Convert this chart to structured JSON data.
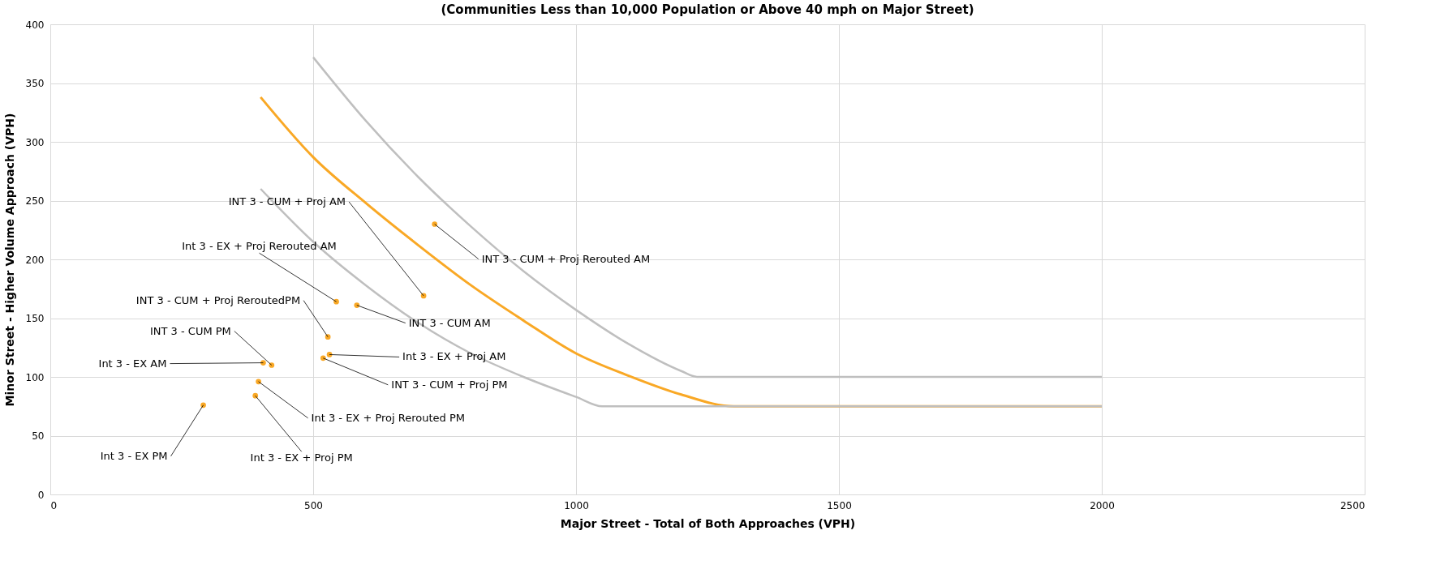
{
  "chart_data": {
    "type": "scatter",
    "title": "(Communities Less than 10,000 Population or Above 40 mph on Major Street)",
    "xlabel": "Major Street - Total of Both Approaches  (VPH)",
    "ylabel": "Minor Street - Higher Volume Approach (VPH)",
    "xlim": [
      0,
      2500
    ],
    "xticks": [
      0,
      500,
      1000,
      1500,
      2000,
      2500
    ],
    "ylim": [
      0,
      400
    ],
    "yticks": [
      0,
      50,
      100,
      150,
      200,
      250,
      300,
      350,
      400
    ],
    "grid": true,
    "series": [
      {
        "type": "line",
        "color": "#bfbfbf",
        "x": [
          500,
          600,
          700,
          800,
          900,
          1000,
          1100,
          1200,
          1230,
          2000
        ],
        "values": [
          372,
          318,
          270,
          228,
          190,
          157,
          128,
          105,
          100,
          100
        ]
      },
      {
        "type": "line",
        "color": "#f9a825",
        "x": [
          400,
          500,
          600,
          700,
          800,
          900,
          1000,
          1100,
          1200,
          1300,
          2000
        ],
        "values": [
          338,
          287,
          248,
          212,
          178,
          148,
          120,
          101,
          85,
          75,
          75
        ]
      },
      {
        "type": "line",
        "color": "#bfbfbf",
        "x": [
          400,
          500,
          600,
          700,
          800,
          900,
          1000,
          1050,
          2000
        ],
        "values": [
          260,
          215,
          178,
          146,
          120,
          100,
          83,
          75,
          75
        ]
      },
      {
        "color": "#f9a825",
        "marker": "circle",
        "x": [
          710,
          731,
          544,
          583,
          528,
          531,
          519,
          421,
          405,
          396,
          390,
          291
        ],
        "values": [
          169,
          230,
          164,
          161,
          134,
          119,
          116,
          110,
          112,
          96,
          84,
          76
        ]
      }
    ],
    "annotations": [
      {
        "text": "INT 3 - CUM + Proj AM",
        "x": 710,
        "y": 169
      },
      {
        "text": "INT 3 - CUM + Proj Rerouted AM",
        "x": 731,
        "y": 230
      },
      {
        "text": "Int 3 - EX + Proj Rerouted AM",
        "x": 544,
        "y": 164
      },
      {
        "text": "INT 3 - CUM AM",
        "x": 583,
        "y": 161
      },
      {
        "text": "INT 3 - CUM + Proj ReroutedPM",
        "x": 528,
        "y": 134
      },
      {
        "text": "Int 3 - EX + Proj AM",
        "x": 531,
        "y": 119
      },
      {
        "text": "INT 3 - CUM + Proj PM",
        "x": 519,
        "y": 116
      },
      {
        "text": "INT 3 - CUM PM",
        "x": 421,
        "y": 110
      },
      {
        "text": "Int 3 - EX AM",
        "x": 405,
        "y": 112
      },
      {
        "text": "Int 3 - EX + Proj Rerouted PM",
        "x": 396,
        "y": 96
      },
      {
        "text": "Int 3 - EX + Proj PM",
        "x": 390,
        "y": 84
      },
      {
        "text": "Int 3 - EX PM",
        "x": 291,
        "y": 76
      }
    ]
  }
}
